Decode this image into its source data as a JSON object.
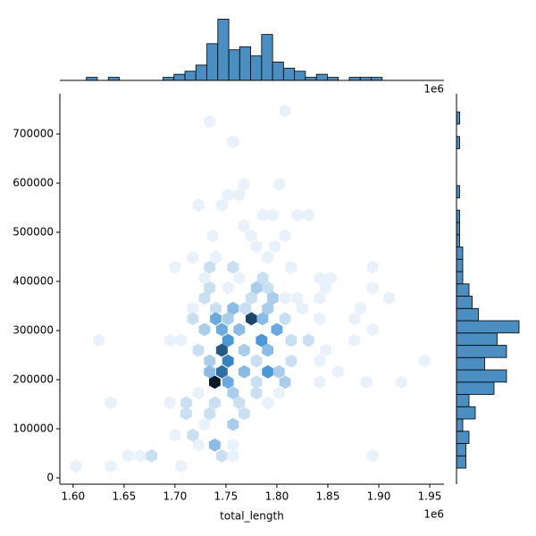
{
  "chart_data": [
    {
      "type": "hexbin",
      "xlabel": "total_length",
      "x_offset_label": "1e6",
      "xlim": [
        1.587,
        1.964
      ],
      "ylim": [
        -12700,
        781800
      ],
      "xticks": [
        {
          "value": 1.6,
          "label": "1.60"
        },
        {
          "value": 1.65,
          "label": "1.65"
        },
        {
          "value": 1.7,
          "label": "1.70"
        },
        {
          "value": 1.75,
          "label": "1.75"
        },
        {
          "value": 1.8,
          "label": "1.80"
        },
        {
          "value": 1.85,
          "label": "1.85"
        },
        {
          "value": 1.9,
          "label": "1.90"
        },
        {
          "value": 1.95,
          "label": "1.95"
        }
      ],
      "yticks": [
        0,
        100000,
        200000,
        300000,
        400000,
        500000,
        600000,
        700000
      ],
      "colors": [
        "#e9f2fa",
        "#3a8fd3",
        "#0b1a28"
      ],
      "x": [
        1.734,
        1.808,
        1.757,
        1.7675,
        1.8026,
        1.752,
        1.763,
        1.723,
        1.746,
        1.786,
        1.796,
        1.82,
        1.831,
        1.7675,
        1.737,
        1.7746,
        1.808,
        1.78,
        1.798,
        1.7175,
        1.74,
        1.791,
        1.7,
        1.734,
        1.757,
        1.814,
        1.894,
        1.729,
        1.763,
        1.786,
        1.842,
        1.853,
        1.734,
        1.752,
        1.78,
        1.791,
        1.848,
        1.894,
        1.91,
        1.729,
        1.775,
        1.796,
        1.808,
        1.82,
        1.842,
        1.7175,
        1.74,
        1.757,
        1.769,
        1.791,
        1.825,
        1.882,
        1.7175,
        1.74,
        1.752,
        1.775,
        1.786,
        1.808,
        1.842,
        1.876,
        1.729,
        1.746,
        1.763,
        1.8,
        1.894,
        1.625,
        1.706,
        1.752,
        1.785,
        1.814,
        1.831,
        1.876,
        1.695,
        1.723,
        1.746,
        1.768,
        1.791,
        1.848,
        1.734,
        1.752,
        1.78,
        1.814,
        1.842,
        1.945,
        1.734,
        1.746,
        1.768,
        1.791,
        1.802,
        1.86,
        1.739,
        1.752,
        1.78,
        1.808,
        1.842,
        1.888,
        1.922,
        1.757,
        1.723,
        1.78,
        1.802,
        1.637,
        1.695,
        1.711,
        1.739,
        1.763,
        1.791,
        1.711,
        1.734,
        1.768,
        1.757,
        1.729,
        1.7,
        1.7175,
        1.739,
        1.757,
        1.723,
        1.654,
        1.666,
        1.677,
        1.746,
        1.757,
        1.894,
        1.603,
        1.637,
        1.706
      ],
      "y": [
        725000,
        747000,
        684000,
        598000,
        598000,
        576000,
        576000,
        555000,
        555000,
        535000,
        535000,
        535000,
        535000,
        513000,
        493000,
        493000,
        493000,
        471000,
        471000,
        449000,
        449000,
        449000,
        429000,
        429000,
        429000,
        429000,
        429000,
        407000,
        407000,
        407000,
        407000,
        407000,
        387000,
        387000,
        387000,
        387000,
        387000,
        387000,
        366000,
        366000,
        366000,
        366000,
        366000,
        366000,
        366000,
        345000,
        345000,
        345000,
        345000,
        345000,
        345000,
        345000,
        324000,
        324000,
        324000,
        324000,
        324000,
        324000,
        324000,
        324000,
        302000,
        302000,
        302000,
        302000,
        302000,
        280000,
        280000,
        280000,
        280000,
        280000,
        280000,
        280000,
        280000,
        260000,
        260000,
        260000,
        260000,
        260000,
        238000,
        238000,
        238000,
        238000,
        238000,
        238000,
        216000,
        216000,
        216000,
        216000,
        216000,
        216000,
        195000,
        195000,
        195000,
        195000,
        195000,
        195000,
        195000,
        173000,
        173000,
        173000,
        173000,
        153000,
        153000,
        153000,
        153000,
        153000,
        153000,
        131000,
        131000,
        131000,
        109000,
        109000,
        87000,
        87000,
        67000,
        67000,
        67000,
        45000,
        45000,
        45000,
        45000,
        45000,
        45000,
        24000,
        24000,
        24000
      ],
      "counts": [
        1,
        1,
        1,
        1,
        1,
        1,
        1,
        1,
        1,
        1,
        1,
        1,
        1,
        1,
        1,
        1,
        1,
        1,
        1,
        1,
        1,
        1,
        1,
        2,
        2,
        1,
        1,
        1,
        1,
        2,
        1,
        1,
        2,
        1,
        3,
        2,
        1,
        1,
        1,
        2,
        2,
        3,
        1,
        1,
        1,
        1,
        2,
        4,
        2,
        3,
        1,
        1,
        2,
        5,
        3,
        10,
        4,
        2,
        1,
        1,
        3,
        5,
        4,
        5,
        1,
        1,
        1,
        6,
        6,
        2,
        2,
        1,
        1,
        2,
        9,
        3,
        4,
        1,
        3,
        7,
        2,
        2,
        1,
        1,
        4,
        8,
        4,
        6,
        3,
        1,
        12,
        5,
        2,
        3,
        1,
        1,
        1,
        3,
        1,
        2,
        1,
        1,
        1,
        2,
        2,
        2,
        1,
        2,
        2,
        2,
        3,
        1,
        1,
        2,
        4,
        1,
        1,
        1,
        1,
        2,
        2,
        1,
        1,
        1,
        1,
        1
      ]
    },
    {
      "type": "histogram",
      "x_offset_label": "1e6",
      "color": "#4a8ec2",
      "xlim": [
        1.587,
        1.964
      ],
      "ylim": [
        0,
        21
      ],
      "bins": [
        1.613,
        1.6238,
        1.6345,
        1.6453,
        1.656,
        1.6668,
        1.6775,
        1.6883,
        1.699,
        1.7098,
        1.7205,
        1.7313,
        1.742,
        1.7528,
        1.7635,
        1.7743,
        1.785,
        1.7958,
        1.8065,
        1.8173,
        1.828,
        1.8388,
        1.8495,
        1.8603,
        1.871,
        1.8818,
        1.8925,
        1.9033,
        1.914,
        1.9248,
        1.9355,
        1.9463,
        1.957
      ],
      "counts": [
        1,
        0,
        1,
        0,
        0,
        0,
        0,
        1,
        2,
        3,
        5,
        12,
        20,
        10,
        11,
        8,
        15,
        6,
        4,
        3,
        1,
        2,
        1,
        0,
        1,
        1,
        1,
        0,
        0,
        0,
        0,
        0
      ]
    },
    {
      "type": "histogram",
      "orientation": "horizontal",
      "color": "#4a8ec2",
      "ylim": [
        -12700,
        781800
      ],
      "xlim": [
        0,
        24
      ],
      "bins": [
        20000,
        45000,
        70000,
        95000,
        120000,
        145000,
        170000,
        195000,
        220000,
        245000,
        270000,
        295000,
        320000,
        345000,
        370000,
        395000,
        420000,
        445000,
        470000,
        495000,
        520000,
        545000,
        570000,
        595000,
        620000,
        645000,
        670000,
        695000,
        720000,
        745000
      ],
      "counts": [
        3,
        3,
        4,
        2,
        6,
        4,
        12,
        16,
        9,
        16,
        13,
        20,
        7,
        5,
        4,
        2,
        2,
        2,
        1,
        1,
        1,
        0,
        1,
        0,
        0,
        0,
        1,
        0,
        1
      ]
    }
  ]
}
